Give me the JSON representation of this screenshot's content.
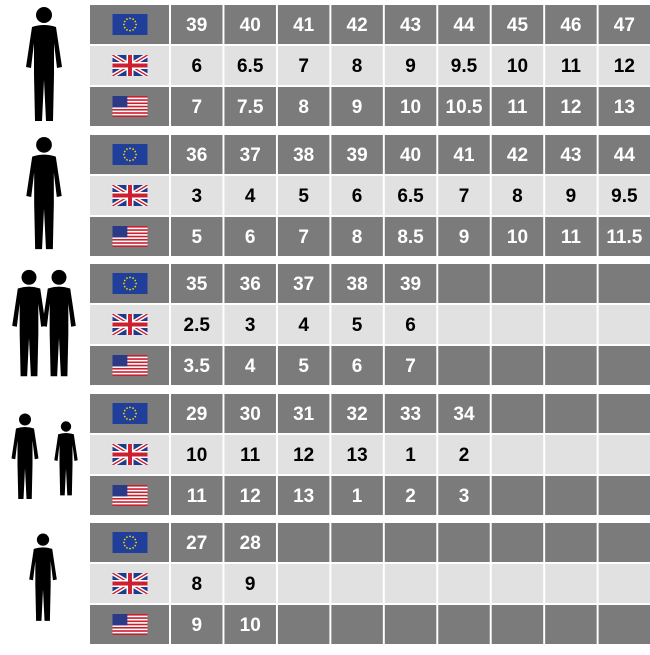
{
  "groups": [
    {
      "eu": [
        39,
        40,
        41,
        42,
        43,
        44,
        45,
        46,
        47
      ],
      "uk": [
        6,
        6.5,
        7,
        8,
        9,
        9.5,
        10,
        11,
        12
      ],
      "us": [
        7,
        7.5,
        8,
        9,
        10,
        10.5,
        11,
        12,
        13
      ]
    },
    {
      "eu": [
        36,
        37,
        38,
        39,
        40,
        41,
        42,
        43,
        44
      ],
      "uk": [
        3,
        4,
        5,
        6,
        6.5,
        7,
        8,
        9,
        9.5
      ],
      "us": [
        5,
        6,
        7,
        8,
        8.5,
        9,
        10,
        11,
        11.5
      ]
    },
    {
      "eu": [
        35,
        36,
        37,
        38,
        39
      ],
      "uk": [
        2.5,
        3,
        4,
        5,
        6
      ],
      "us": [
        3.5,
        4,
        5,
        6,
        7
      ]
    },
    {
      "eu": [
        29,
        30,
        31,
        32,
        33,
        34
      ],
      "uk": [
        10,
        11,
        12,
        13,
        1,
        2
      ],
      "us": [
        11,
        12,
        13,
        1,
        2,
        3
      ]
    },
    {
      "eu": [
        27,
        28
      ],
      "uk": [
        8,
        9
      ],
      "us": [
        9,
        10
      ]
    }
  ]
}
